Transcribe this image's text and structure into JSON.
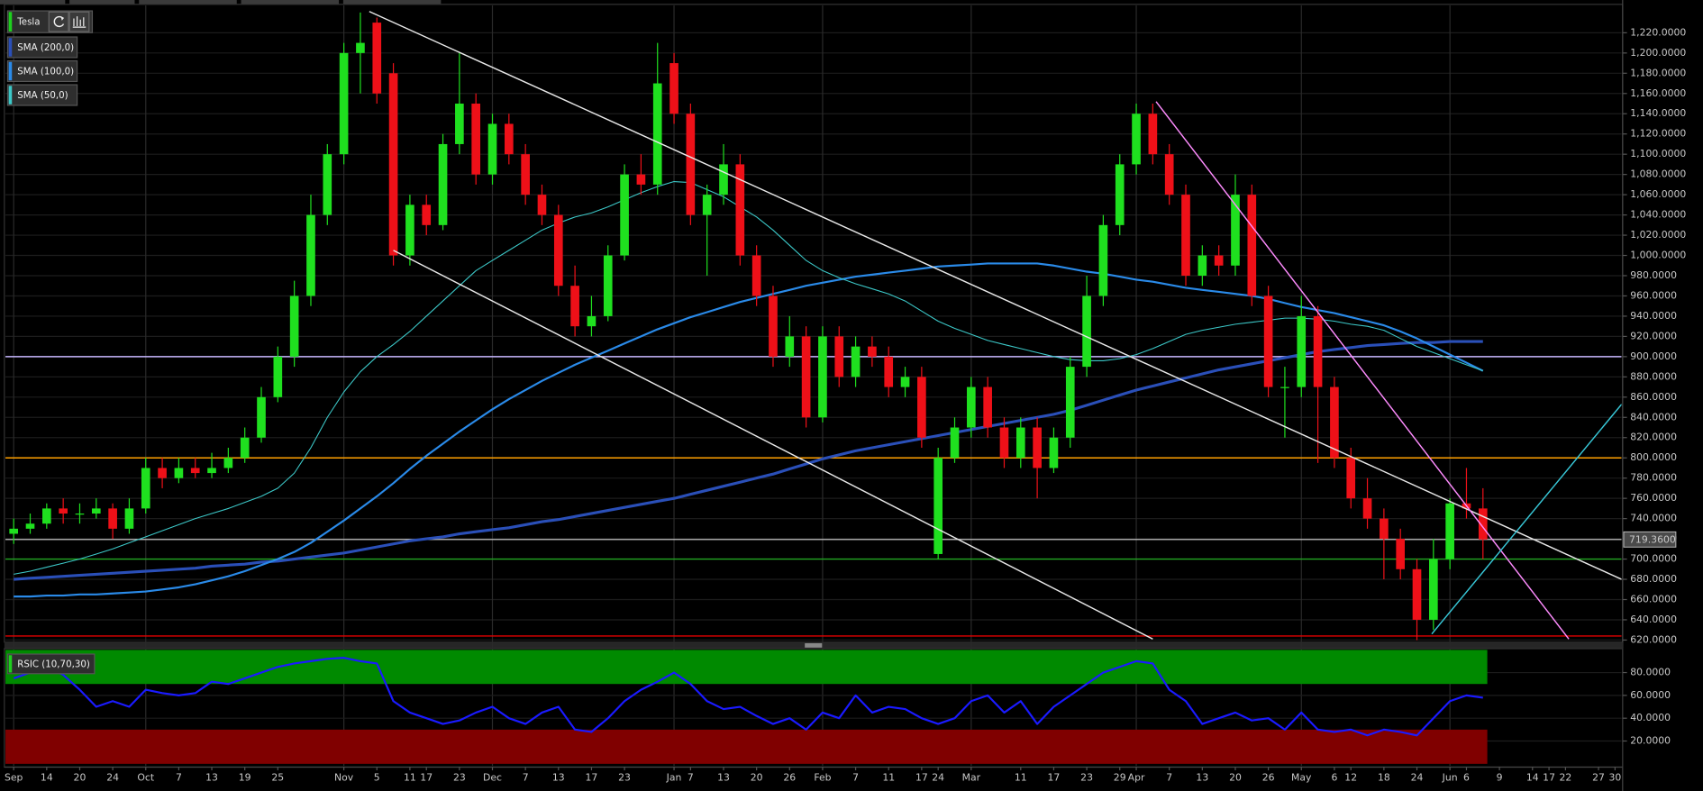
{
  "chart_data": {
    "type": "candlestick",
    "symbol": "Tesla",
    "categories": [
      "Sep",
      null,
      "14",
      null,
      "20",
      null,
      "24",
      null,
      "Oct",
      null,
      "7",
      null,
      "13",
      null,
      "19",
      null,
      "25",
      null,
      null,
      null,
      "Nov",
      null,
      "5",
      null,
      "11",
      "17",
      null,
      "23",
      null,
      "Dec",
      null,
      "7",
      null,
      "13",
      null,
      "17",
      null,
      "23",
      null,
      null,
      "Jan",
      "7",
      null,
      "13",
      null,
      "20",
      null,
      "26",
      null,
      "Feb",
      null,
      "7",
      null,
      "11",
      null,
      "17",
      "24",
      null,
      "Mar",
      null,
      null,
      "11",
      null,
      "17",
      null,
      "23",
      null,
      "29",
      "Apr",
      null,
      "7",
      null,
      "13",
      null,
      "20",
      null,
      "26",
      null,
      "May",
      null,
      "6",
      "12",
      null,
      "18",
      null,
      "24",
      null,
      "Jun",
      "6",
      null,
      "9",
      null,
      "14",
      "17",
      "22",
      null,
      "27",
      "30"
    ],
    "open": [
      725,
      730,
      735,
      750,
      745,
      745,
      750,
      730,
      750,
      790,
      780,
      790,
      785,
      790,
      800,
      820,
      860,
      900,
      960,
      1040,
      1100,
      1200,
      1230,
      1180,
      1000,
      1050,
      1030,
      1110,
      1150,
      1080,
      1130,
      1100,
      1060,
      1040,
      970,
      930,
      940,
      1000,
      1080,
      1070,
      1190,
      1140,
      1040,
      1060,
      1090,
      1000,
      960,
      900,
      920,
      840,
      920,
      880,
      910,
      900,
      870,
      880,
      705,
      800,
      830,
      870,
      830,
      800,
      830,
      790,
      820,
      890,
      960,
      1030,
      1090,
      1140,
      1100,
      1060,
      980,
      1000,
      990,
      1060,
      960,
      870,
      870,
      940,
      870,
      800,
      760,
      740,
      720,
      690,
      640,
      700,
      755,
      750,
      null,
      null,
      null,
      null,
      null,
      null,
      null,
      null
    ],
    "high": [
      740,
      745,
      755,
      760,
      755,
      760,
      755,
      760,
      800,
      800,
      800,
      800,
      805,
      810,
      830,
      870,
      910,
      975,
      1060,
      1110,
      1210,
      1240,
      1235,
      1190,
      1060,
      1060,
      1120,
      1200,
      1160,
      1140,
      1140,
      1110,
      1070,
      1050,
      990,
      960,
      1010,
      1090,
      1100,
      1210,
      1200,
      1150,
      1070,
      1110,
      1100,
      1010,
      970,
      940,
      930,
      930,
      930,
      920,
      920,
      910,
      890,
      890,
      810,
      840,
      880,
      880,
      840,
      840,
      840,
      830,
      900,
      980,
      1040,
      1100,
      1150,
      1150,
      1110,
      1070,
      1010,
      1010,
      1080,
      1070,
      970,
      890,
      960,
      950,
      880,
      810,
      780,
      750,
      730,
      700,
      720,
      760,
      790,
      770,
      null,
      null,
      null,
      null,
      null,
      null,
      null,
      null
    ],
    "low": [
      715,
      725,
      730,
      735,
      735,
      740,
      720,
      725,
      745,
      770,
      775,
      780,
      780,
      785,
      795,
      815,
      855,
      890,
      950,
      1030,
      1090,
      1160,
      1150,
      990,
      990,
      1020,
      1025,
      1100,
      1070,
      1070,
      1090,
      1050,
      1030,
      960,
      920,
      920,
      935,
      995,
      1060,
      1060,
      1130,
      1030,
      980,
      1050,
      990,
      950,
      890,
      890,
      830,
      835,
      870,
      870,
      890,
      860,
      860,
      810,
      700,
      795,
      820,
      820,
      790,
      790,
      760,
      785,
      810,
      880,
      950,
      1020,
      1080,
      1090,
      1050,
      970,
      970,
      980,
      980,
      950,
      860,
      820,
      860,
      795,
      790,
      750,
      730,
      680,
      680,
      620,
      630,
      690,
      740,
      700,
      null,
      null,
      null,
      null,
      null,
      null,
      null,
      null
    ],
    "close": [
      730,
      735,
      750,
      745,
      745,
      750,
      730,
      750,
      790,
      780,
      790,
      785,
      790,
      800,
      820,
      860,
      900,
      960,
      1040,
      1100,
      1200,
      1210,
      1160,
      1000,
      1050,
      1030,
      1110,
      1150,
      1080,
      1130,
      1100,
      1060,
      1040,
      970,
      930,
      940,
      1000,
      1080,
      1070,
      1170,
      1140,
      1040,
      1060,
      1090,
      1000,
      960,
      900,
      920,
      840,
      920,
      880,
      910,
      900,
      870,
      880,
      820,
      800,
      830,
      870,
      830,
      800,
      830,
      790,
      820,
      890,
      960,
      1030,
      1090,
      1140,
      1100,
      1060,
      980,
      1000,
      990,
      1060,
      960,
      870,
      870,
      940,
      870,
      800,
      760,
      740,
      720,
      690,
      640,
      700,
      755,
      750,
      719.36,
      null,
      null,
      null,
      null,
      null,
      null,
      null,
      null
    ],
    "up_color": "#1fe01f",
    "down_color": "#ee1018",
    "series": [
      {
        "name": "SMA (200,0)",
        "color": "#2a4fb8",
        "line_width": 2.6,
        "values": [
          680,
          681,
          682,
          683,
          684,
          685,
          686,
          687,
          688,
          689,
          690,
          691,
          693,
          694,
          695,
          697,
          698,
          700,
          702,
          704,
          706,
          709,
          712,
          715,
          718,
          720,
          722,
          725,
          727,
          729,
          731,
          734,
          737,
          739,
          742,
          745,
          748,
          751,
          754,
          757,
          760,
          764,
          768,
          772,
          776,
          780,
          784,
          789,
          794,
          799,
          803,
          807,
          810,
          813,
          816,
          819,
          822,
          825,
          828,
          831,
          834,
          837,
          840,
          843,
          847,
          852,
          857,
          862,
          867,
          871,
          875,
          879,
          883,
          887,
          890,
          893,
          896,
          899,
          902,
          905,
          907,
          909,
          911,
          912,
          913,
          914,
          914,
          915,
          915,
          915,
          null,
          null,
          null,
          null,
          null,
          null,
          null,
          null
        ]
      },
      {
        "name": "SMA (100,0)",
        "color": "#2a8ae8",
        "line_width": 1.8,
        "values": [
          663,
          663,
          664,
          664,
          665,
          665,
          666,
          667,
          668,
          670,
          672,
          675,
          679,
          683,
          688,
          694,
          700,
          707,
          716,
          727,
          738,
          750,
          762,
          775,
          789,
          802,
          814,
          826,
          837,
          848,
          858,
          867,
          876,
          884,
          892,
          899,
          906,
          913,
          920,
          927,
          933,
          939,
          944,
          949,
          954,
          958,
          962,
          966,
          970,
          973,
          976,
          979,
          981,
          983,
          985,
          987,
          989,
          990,
          991,
          992,
          992,
          992,
          992,
          990,
          987,
          984,
          982,
          979,
          976,
          974,
          971,
          968,
          966,
          964,
          962,
          960,
          957,
          953,
          949,
          946,
          943,
          939,
          935,
          931,
          925,
          918,
          910,
          902,
          894,
          886,
          null,
          null,
          null,
          null,
          null,
          null,
          null,
          null
        ]
      },
      {
        "name": "SMA (50,0)",
        "color": "#3cc8c8",
        "line_width": 0.9,
        "values": [
          685,
          688,
          692,
          696,
          700,
          705,
          710,
          716,
          722,
          728,
          734,
          740,
          745,
          750,
          756,
          762,
          770,
          785,
          810,
          840,
          865,
          885,
          900,
          912,
          925,
          940,
          955,
          970,
          985,
          995,
          1005,
          1015,
          1025,
          1032,
          1038,
          1042,
          1048,
          1055,
          1062,
          1068,
          1073,
          1072,
          1065,
          1058,
          1048,
          1038,
          1025,
          1010,
          995,
          985,
          978,
          972,
          967,
          962,
          955,
          945,
          935,
          928,
          922,
          916,
          912,
          908,
          904,
          900,
          897,
          896,
          896,
          898,
          902,
          908,
          915,
          922,
          926,
          929,
          932,
          934,
          936,
          938,
          938,
          937,
          935,
          932,
          930,
          926,
          918,
          910,
          904,
          898,
          892,
          886,
          null,
          null,
          null,
          null,
          null,
          null,
          null,
          null
        ]
      }
    ],
    "ylim": [
      619,
      1247
    ],
    "yticks": [
      {
        "value": 620,
        "label": "620.0000"
      },
      {
        "value": 640,
        "label": "640.0000"
      },
      {
        "value": 660,
        "label": "660.0000"
      },
      {
        "value": 680,
        "label": "680.0000"
      },
      {
        "value": 700,
        "label": "700.0000"
      },
      {
        "value": 720,
        "label": "720.0000"
      },
      {
        "value": 740,
        "label": "740.0000"
      },
      {
        "value": 760,
        "label": "760.0000"
      },
      {
        "value": 780,
        "label": "780.0000"
      },
      {
        "value": 800,
        "label": "800.0000"
      },
      {
        "value": 820,
        "label": "820.0000"
      },
      {
        "value": 840,
        "label": "840.0000"
      },
      {
        "value": 860,
        "label": "860.0000"
      },
      {
        "value": 880,
        "label": "880.0000"
      },
      {
        "value": 900,
        "label": "900.0000"
      },
      {
        "value": 920,
        "label": "920.0000"
      },
      {
        "value": 940,
        "label": "940.0000"
      },
      {
        "value": 960,
        "label": "960.0000"
      },
      {
        "value": 980,
        "label": "980.0000"
      },
      {
        "value": 1000,
        "label": "1,000.0000"
      },
      {
        "value": 1020,
        "label": "1,020.0000"
      },
      {
        "value": 1040,
        "label": "1,040.0000"
      },
      {
        "value": 1060,
        "label": "1,060.0000"
      },
      {
        "value": 1080,
        "label": "1,080.0000"
      },
      {
        "value": 1100,
        "label": "1,100.0000"
      },
      {
        "value": 1120,
        "label": "1,120.0000"
      },
      {
        "value": 1140,
        "label": "1,140.0000"
      },
      {
        "value": 1160,
        "label": "1,160.0000"
      },
      {
        "value": 1180,
        "label": "1,180.0000"
      },
      {
        "value": 1200,
        "label": "1,200.0000"
      },
      {
        "value": 1220,
        "label": "1,220.0000"
      }
    ],
    "grid": true,
    "levels": [
      {
        "value": 900,
        "color": "#c8b8ff"
      },
      {
        "value": 800,
        "color": "#ffa000"
      },
      {
        "value": 700,
        "color": "#22a822"
      },
      {
        "value": 624,
        "color": "#e00000"
      }
    ],
    "trend_lines": [
      {
        "color": "#e8e8e8",
        "from": [
          21.54,
          1241
        ],
        "to": [
          97.4,
          680
        ]
      },
      {
        "color": "#e8e8e8",
        "from": [
          23.0,
          1005
        ],
        "to": [
          69.0,
          621
        ]
      },
      {
        "color": "#ff8cff",
        "from": [
          69.2,
          1152
        ],
        "to": [
          94.2,
          621
        ]
      },
      {
        "color": "#38c8d8",
        "from": [
          85.9,
          626
        ],
        "to": [
          97.4,
          853
        ]
      }
    ],
    "last_price": {
      "value": 719.36,
      "label": "719.3600"
    },
    "indicator": {
      "type": "line",
      "name": "RSIC (10,70,30)",
      "color": "#1a1aff",
      "values": [
        75,
        80,
        85,
        78,
        65,
        50,
        55,
        50,
        65,
        62,
        60,
        62,
        72,
        70,
        75,
        80,
        85,
        88,
        90,
        92,
        93,
        90,
        88,
        55,
        45,
        40,
        35,
        38,
        45,
        50,
        40,
        35,
        45,
        50,
        30,
        28,
        40,
        55,
        65,
        72,
        80,
        70,
        55,
        48,
        50,
        42,
        35,
        40,
        30,
        45,
        40,
        60,
        45,
        50,
        48,
        40,
        35,
        40,
        55,
        60,
        45,
        55,
        35,
        50,
        60,
        70,
        80,
        85,
        90,
        88,
        65,
        55,
        35,
        40,
        45,
        38,
        40,
        30,
        45,
        30,
        28,
        30,
        25,
        30,
        28,
        25,
        40,
        55,
        60,
        58,
        null,
        null,
        null,
        null,
        null,
        null,
        null,
        null
      ],
      "ylim": [
        0,
        100
      ],
      "yticks": [
        {
          "value": 20,
          "label": "20.0000"
        },
        {
          "value": 40,
          "label": "40.0000"
        },
        {
          "value": 60,
          "label": "60.0000"
        },
        {
          "value": 80,
          "label": "80.0000"
        }
      ],
      "overbought": 70,
      "oversold": 30,
      "overbought_color": "#008a00",
      "oversold_color": "#800000"
    }
  }
}
